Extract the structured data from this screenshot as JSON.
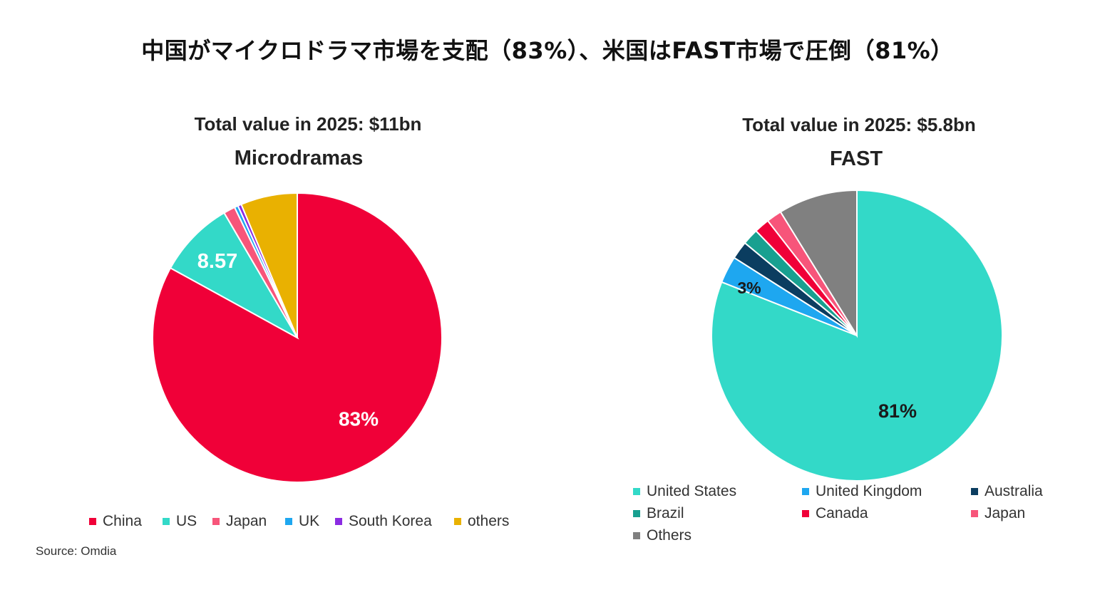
{
  "headline": "中国がマイクロドラマ市場を支配（83%）、米国はFAST市場で圧倒（81%）",
  "source": "Source: Omdia",
  "chart_data": [
    {
      "type": "pie",
      "subtitle": "Total value in 2025: $11bn",
      "title": "Microdramas",
      "slices": [
        {
          "label": "China",
          "value": 83,
          "color": "#f00038",
          "data_label": "83%",
          "label_color": "#ffffff"
        },
        {
          "label": "US",
          "value": 8.57,
          "color": "#33d9c8",
          "data_label": "8.57",
          "label_color": "#ffffff"
        },
        {
          "label": "Japan",
          "value": 1.3,
          "color": "#f7557a"
        },
        {
          "label": "UK",
          "value": 0.4,
          "color": "#1ea7f0"
        },
        {
          "label": "South Korea",
          "value": 0.4,
          "color": "#8b2be2"
        },
        {
          "label": "others",
          "value": 6.33,
          "color": "#e9b101"
        }
      ]
    },
    {
      "type": "pie",
      "subtitle": "Total value in 2025: $5.8bn",
      "title": "FAST",
      "slices": [
        {
          "label": "United States",
          "value": 81,
          "color": "#33d9c8",
          "data_label": "81%",
          "label_color": "#1a1a1a"
        },
        {
          "label": "United Kingdom",
          "value": 3,
          "color": "#1ea7f0",
          "data_label": "3%",
          "label_color": "#1a1a1a"
        },
        {
          "label": "Australia",
          "value": 2,
          "color": "#0b3d60"
        },
        {
          "label": "Brazil",
          "value": 1.8,
          "color": "#18a090"
        },
        {
          "label": "Canada",
          "value": 1.7,
          "color": "#f00038"
        },
        {
          "label": "Japan",
          "value": 1.7,
          "color": "#f7557a"
        },
        {
          "label": "Others",
          "value": 8.8,
          "color": "#808080"
        }
      ]
    }
  ]
}
